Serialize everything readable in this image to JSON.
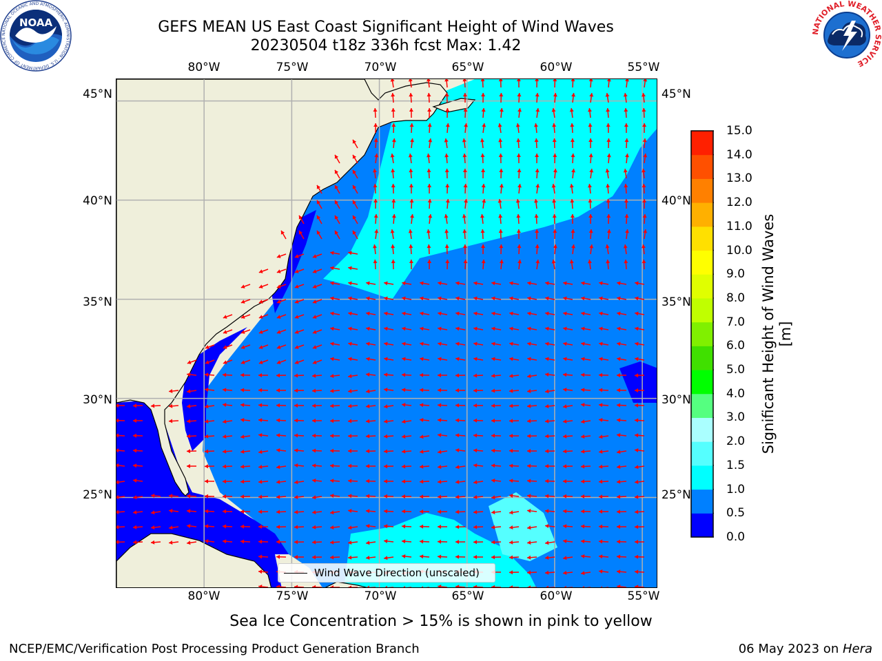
{
  "title_line1": "GEFS MEAN US East Coast Significant Height of Wind Waves",
  "title_line2": "20230504 t18z 336h fcst   Max: 1.42",
  "left_logo": {
    "name": "NOAA",
    "ring_text": "NATIONAL OCEANIC AND ATMOSPHERIC ADMINISTRATION · U.S. DEPARTMENT OF COMMERCE"
  },
  "right_logo": {
    "ring_text": "NATIONAL WEATHER SERVICE"
  },
  "map": {
    "projection": "lat-lon",
    "lon_range": [
      -85,
      -54.1
    ],
    "lat_range": [
      20.4,
      46.1
    ],
    "gridlines": true,
    "land_color": "#efefdb",
    "coast_color": "#000000",
    "arrow_color": "#ff0000",
    "lon_labels": [
      "80°W",
      "75°W",
      "70°W",
      "65°W",
      "60°W",
      "55°W"
    ],
    "lat_labels": [
      "45°N",
      "40°N",
      "35°N",
      "30°N",
      "25°N"
    ]
  },
  "legend_label": "Wind Wave Direction (unscaled)",
  "colorbar": {
    "label": "Significant Height of Wind Waves [m]",
    "tick_labels": [
      "0.0",
      "0.5",
      "1.0",
      "1.5",
      "2.0",
      "3.0",
      "4.0",
      "5.0",
      "6.0",
      "7.0",
      "8.0",
      "9.0",
      "10.0",
      "11.0",
      "12.0",
      "13.0",
      "14.0",
      "15.0"
    ],
    "colors": [
      "#0000ff",
      "#0080ff",
      "#00ffff",
      "#55ffff",
      "#aaffff",
      "#55ff80",
      "#00ff00",
      "#40e000",
      "#80f000",
      "#c0ff00",
      "#e0ff00",
      "#ffff00",
      "#ffe000",
      "#ffb000",
      "#ff8000",
      "#ff5000",
      "#ff2000",
      "#ff0000"
    ]
  },
  "caption": "Sea Ice Concentration > 15% is shown in pink to yellow",
  "footer_left": "NCEP/EMC/Verification Post Processing Product Generation Branch",
  "footer_date": "06 May 2023 on ",
  "footer_machine": "Hera"
}
